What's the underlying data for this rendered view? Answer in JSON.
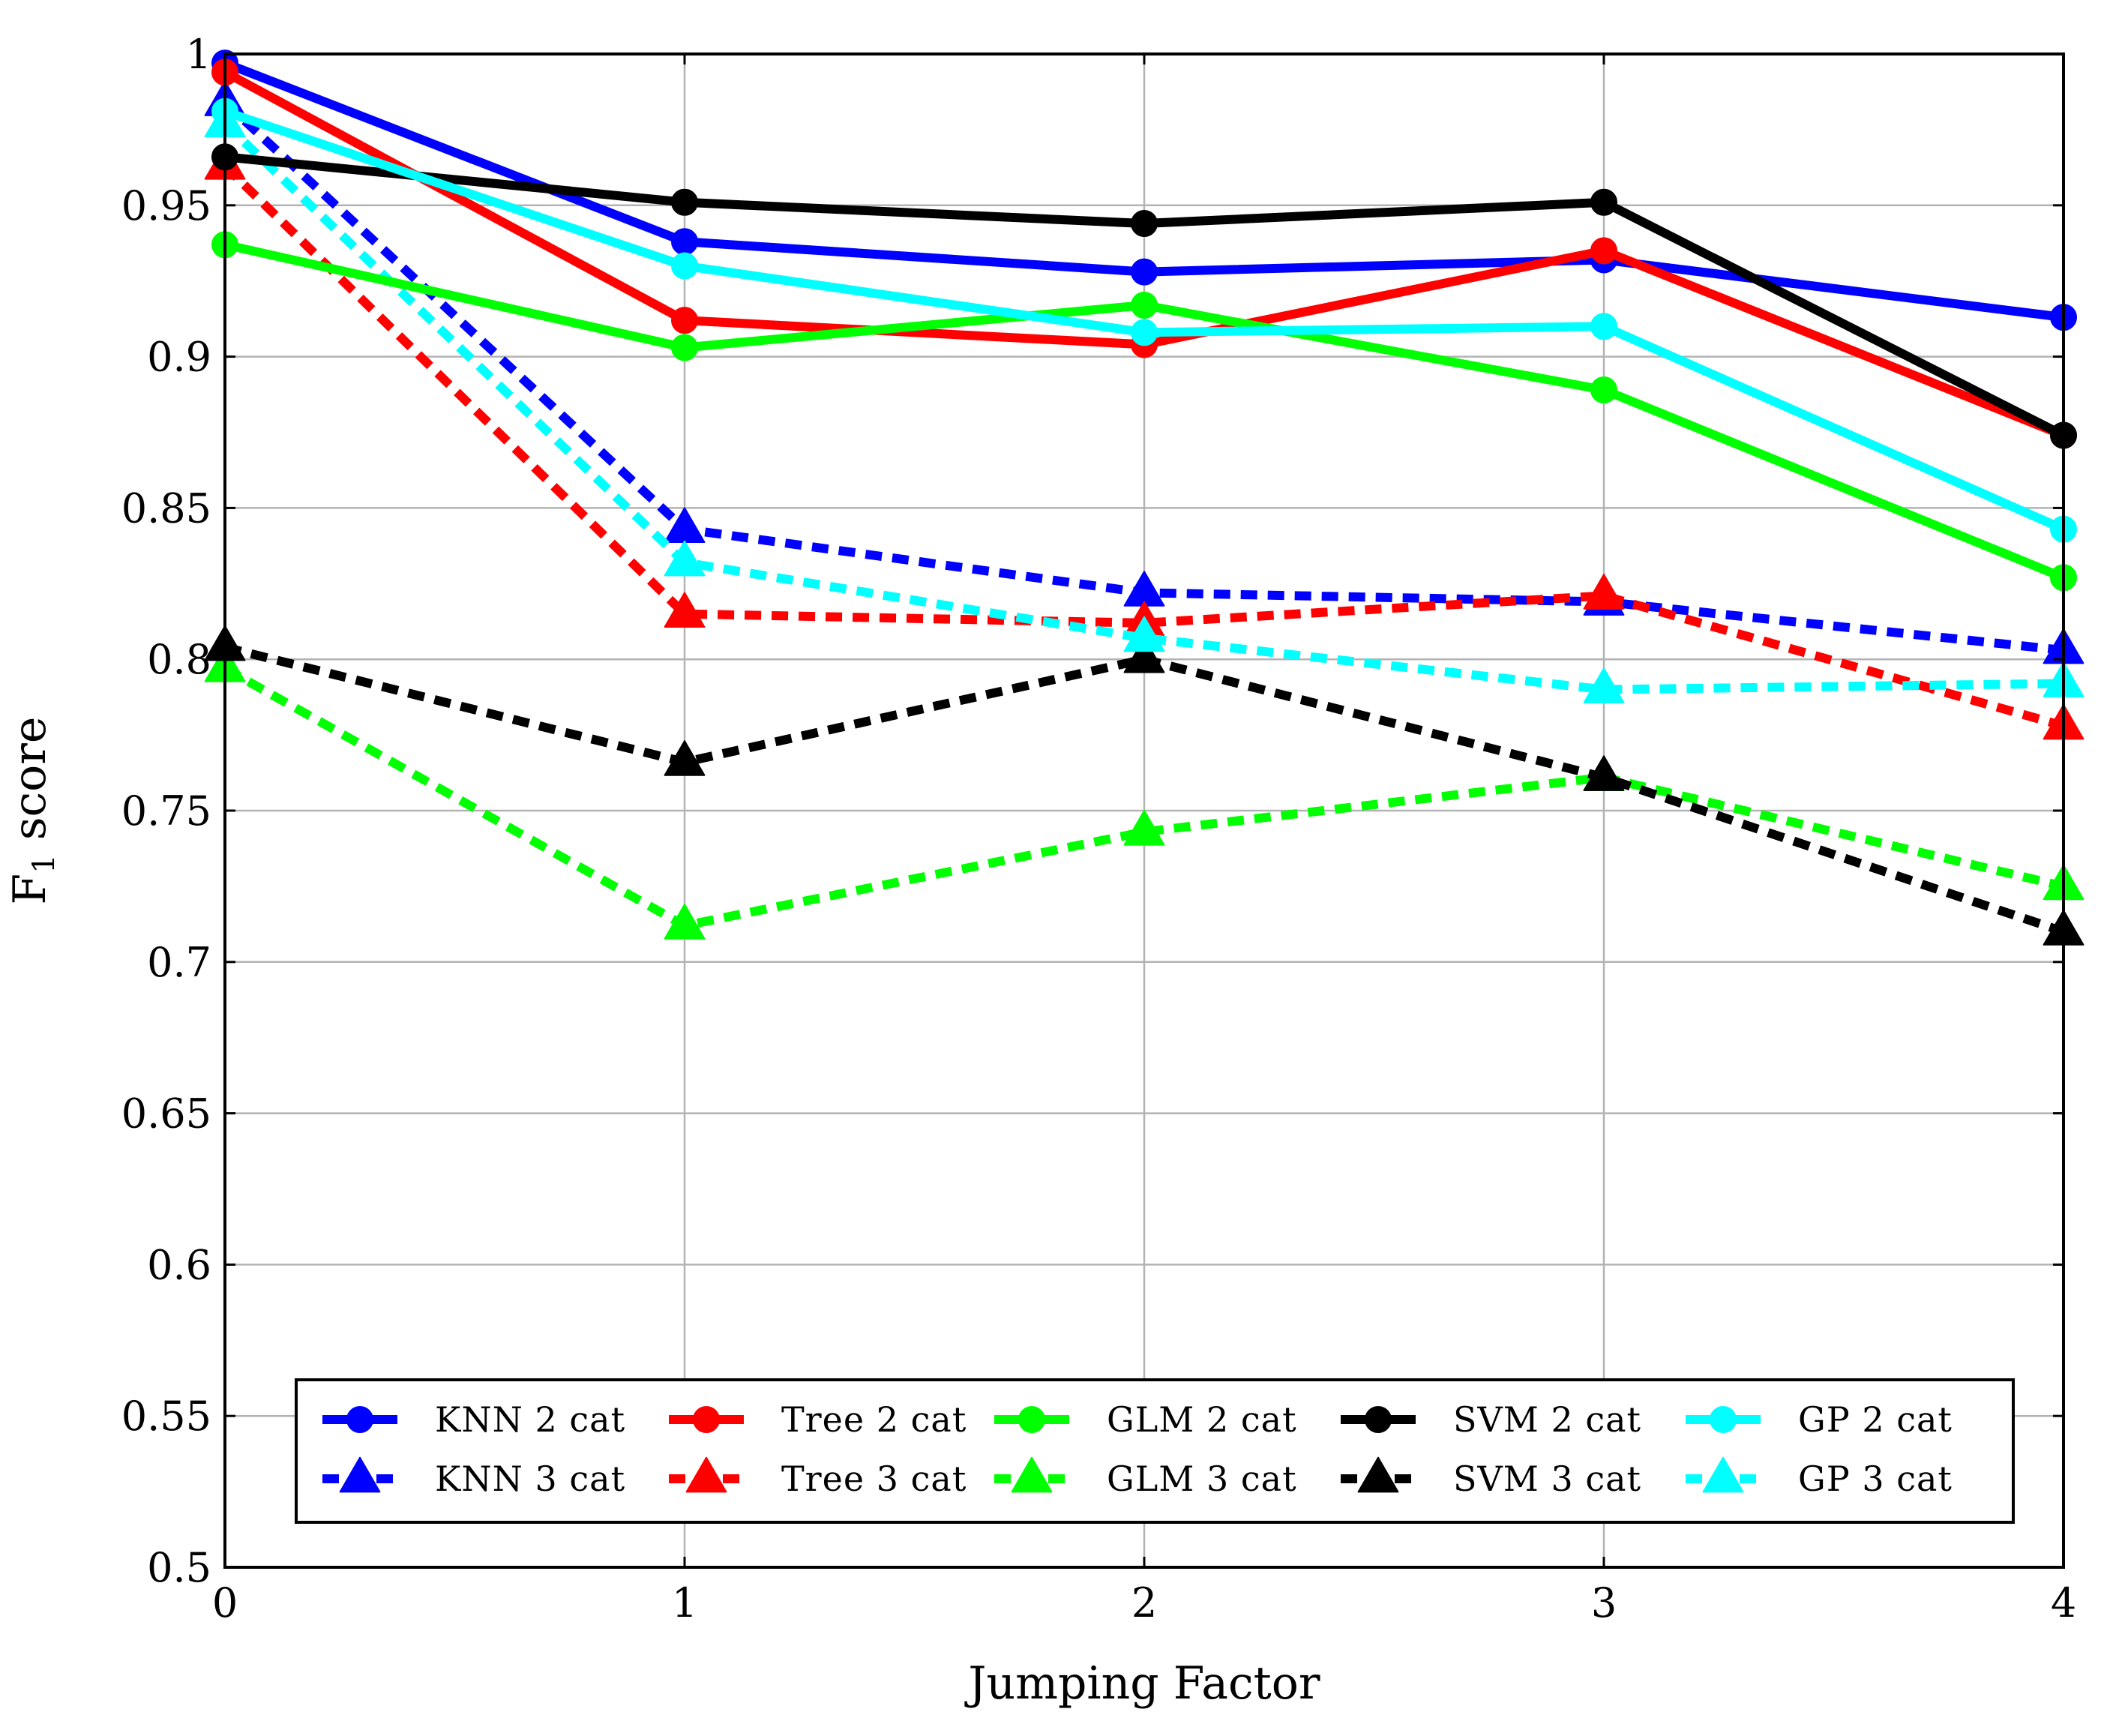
{
  "chart_data": {
    "type": "line",
    "title": "",
    "xlabel": "Jumping Factor",
    "ylabel": "F",
    "ylabel_sub": "1",
    "ylabel_rest": " score",
    "xlim": [
      0,
      4
    ],
    "ylim": [
      0.5,
      1
    ],
    "x": [
      0,
      1,
      2,
      3,
      4
    ],
    "x_ticks": [
      "0",
      "1",
      "2",
      "3",
      "4"
    ],
    "y_ticks": [
      {
        "value": 0.5,
        "label": "0.5"
      },
      {
        "value": 0.55,
        "label": "0.55"
      },
      {
        "value": 0.6,
        "label": "0.6"
      },
      {
        "value": 0.65,
        "label": "0.65"
      },
      {
        "value": 0.7,
        "label": "0.7"
      },
      {
        "value": 0.75,
        "label": "0.75"
      },
      {
        "value": 0.8,
        "label": "0.8"
      },
      {
        "value": 0.85,
        "label": "0.85"
      },
      {
        "value": 0.9,
        "label": "0.9"
      },
      {
        "value": 0.95,
        "label": "0.95"
      },
      {
        "value": 1,
        "label": "1"
      }
    ],
    "grid": true,
    "legend_position": "bottom-center",
    "series": [
      {
        "name": "KNN 2 cat",
        "color": "#0000ff",
        "style": "solid",
        "marker": "circle",
        "values": [
          0.997,
          0.938,
          0.928,
          0.932,
          0.913
        ]
      },
      {
        "name": "Tree 2 cat",
        "color": "#ff0000",
        "style": "solid",
        "marker": "circle",
        "values": [
          0.994,
          0.912,
          0.904,
          0.935,
          0.874
        ]
      },
      {
        "name": "GLM 2 cat",
        "color": "#00ff00",
        "style": "solid",
        "marker": "circle",
        "values": [
          0.937,
          0.903,
          0.917,
          0.889,
          0.827
        ]
      },
      {
        "name": "SVM 2 cat",
        "color": "#000000",
        "style": "solid",
        "marker": "circle",
        "values": [
          0.966,
          0.951,
          0.944,
          0.951,
          0.874
        ]
      },
      {
        "name": "GP 2 cat",
        "color": "#00ffff",
        "style": "solid",
        "marker": "circle",
        "values": [
          0.981,
          0.93,
          0.908,
          0.91,
          0.843
        ]
      },
      {
        "name": "KNN 3 cat",
        "color": "#0000ff",
        "style": "dashed",
        "marker": "triangle",
        "values": [
          0.984,
          0.843,
          0.822,
          0.819,
          0.803
        ]
      },
      {
        "name": "Tree 3 cat",
        "color": "#ff0000",
        "style": "dashed",
        "marker": "triangle",
        "values": [
          0.963,
          0.815,
          0.812,
          0.821,
          0.778
        ]
      },
      {
        "name": "GLM 3 cat",
        "color": "#00ff00",
        "style": "dashed",
        "marker": "triangle",
        "values": [
          0.797,
          0.712,
          0.743,
          0.761,
          0.725
        ]
      },
      {
        "name": "SVM 3 cat",
        "color": "#000000",
        "style": "dashed",
        "marker": "triangle",
        "values": [
          0.804,
          0.766,
          0.8,
          0.761,
          0.71
        ]
      },
      {
        "name": "GP 3 cat",
        "color": "#00ffff",
        "style": "dashed",
        "marker": "triangle",
        "values": [
          0.977,
          0.832,
          0.807,
          0.79,
          0.792
        ]
      }
    ],
    "legend_rows": [
      [
        "KNN 2 cat",
        "Tree 2 cat",
        "GLM 2 cat",
        "SVM 2 cat",
        "GP 2 cat"
      ],
      [
        "KNN 3 cat",
        "Tree 3 cat",
        "GLM 3 cat",
        "SVM 3 cat",
        "GP 3 cat"
      ]
    ]
  }
}
